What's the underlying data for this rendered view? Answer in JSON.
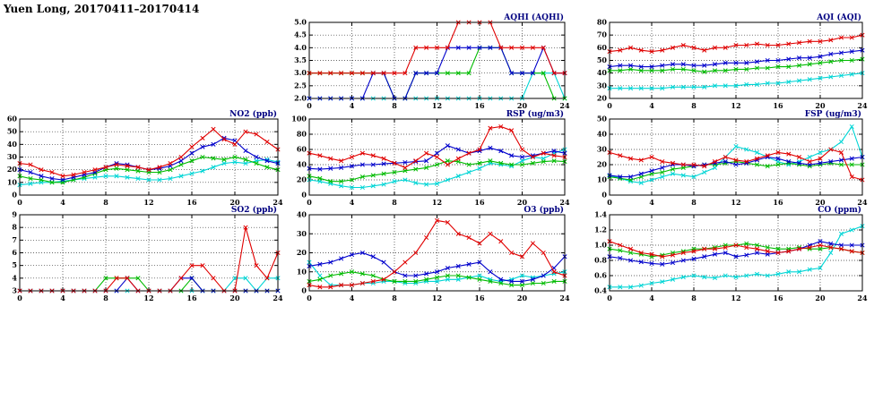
{
  "title": "Yuen Long, 20170411–20170414",
  "colors": {
    "red": "#e00000",
    "blue": "#0000cc",
    "green": "#00bb00",
    "cyan": "#00d5d5"
  },
  "chart_data": [
    {
      "key": "aqhi",
      "type": "line",
      "title": "AQHI (AQHI)",
      "xlim": [
        0,
        24
      ],
      "xticks": [
        "0",
        "4",
        "8",
        "12",
        "16",
        "20",
        "24"
      ],
      "ylim": [
        2,
        5
      ],
      "yticks": [
        "2.0",
        "2.5",
        "3.0",
        "3.5",
        "4.0",
        "4.5",
        "5.0"
      ],
      "series": [
        {
          "color": "cyan",
          "values": [
            2,
            2,
            2,
            2,
            2,
            2,
            2,
            2,
            2,
            2,
            2,
            2,
            2,
            2,
            2,
            2,
            2,
            2,
            2,
            2,
            2,
            3,
            3,
            3,
            2
          ]
        },
        {
          "color": "green",
          "values": [
            3,
            3,
            3,
            3,
            3,
            3,
            3,
            3,
            2,
            2,
            3,
            3,
            3,
            3,
            3,
            3,
            4,
            4,
            4,
            3,
            3,
            3,
            3,
            2,
            2
          ]
        },
        {
          "color": "blue",
          "values": [
            2,
            2,
            2,
            2,
            2,
            2,
            3,
            3,
            2,
            2,
            3,
            3,
            3,
            4,
            4,
            4,
            4,
            4,
            4,
            3,
            3,
            3,
            4,
            3,
            3
          ]
        },
        {
          "color": "red",
          "values": [
            3,
            3,
            3,
            3,
            3,
            3,
            3,
            3,
            3,
            3,
            4,
            4,
            4,
            4,
            5,
            5,
            5,
            5,
            4,
            4,
            4,
            4,
            4,
            3,
            3
          ]
        }
      ]
    },
    {
      "key": "aqi",
      "type": "line",
      "title": "AQI (AQI)",
      "xlim": [
        0,
        24
      ],
      "xticks": [
        "0",
        "4",
        "8",
        "12",
        "16",
        "20",
        "24"
      ],
      "ylim": [
        20,
        80
      ],
      "yticks": [
        "20",
        "30",
        "40",
        "50",
        "60",
        "70",
        "80"
      ],
      "series": [
        {
          "color": "cyan",
          "values": [
            28,
            28,
            28,
            28,
            28,
            28,
            29,
            29,
            29,
            29,
            30,
            30,
            30,
            31,
            31,
            32,
            32,
            33,
            34,
            35,
            36,
            37,
            38,
            39,
            40
          ]
        },
        {
          "color": "green",
          "values": [
            42,
            42,
            43,
            42,
            42,
            42,
            43,
            43,
            42,
            41,
            42,
            42,
            43,
            43,
            44,
            44,
            45,
            45,
            46,
            47,
            48,
            49,
            50,
            50,
            51
          ]
        },
        {
          "color": "blue",
          "values": [
            45,
            46,
            46,
            45,
            45,
            46,
            47,
            47,
            46,
            46,
            47,
            48,
            48,
            48,
            49,
            50,
            50,
            51,
            52,
            52,
            53,
            55,
            56,
            57,
            58
          ]
        },
        {
          "color": "red",
          "values": [
            57,
            58,
            60,
            58,
            57,
            58,
            60,
            62,
            60,
            58,
            60,
            60,
            62,
            62,
            63,
            62,
            62,
            63,
            64,
            65,
            65,
            66,
            68,
            68,
            70
          ]
        }
      ]
    },
    {
      "key": "no2",
      "type": "line",
      "title": "NO2 (ppb)",
      "xlim": [
        0,
        24
      ],
      "xticks": [
        "0",
        "4",
        "8",
        "12",
        "16",
        "20",
        "24"
      ],
      "ylim": [
        0,
        60
      ],
      "yticks": [
        "0",
        "10",
        "20",
        "30",
        "40",
        "50",
        "60"
      ],
      "series": [
        {
          "color": "cyan",
          "values": [
            8,
            9,
            10,
            10,
            11,
            12,
            13,
            14,
            15,
            15,
            14,
            13,
            12,
            12,
            13,
            15,
            17,
            19,
            22,
            25,
            26,
            25,
            27,
            28,
            26
          ]
        },
        {
          "color": "green",
          "values": [
            15,
            13,
            12,
            10,
            10,
            12,
            14,
            17,
            20,
            21,
            20,
            19,
            18,
            18,
            20,
            24,
            27,
            30,
            29,
            28,
            30,
            28,
            25,
            22,
            20
          ]
        },
        {
          "color": "blue",
          "values": [
            20,
            18,
            15,
            13,
            12,
            14,
            16,
            18,
            22,
            25,
            24,
            22,
            20,
            21,
            23,
            27,
            33,
            38,
            40,
            45,
            43,
            35,
            30,
            27,
            25
          ]
        },
        {
          "color": "red",
          "values": [
            25,
            24,
            20,
            18,
            15,
            16,
            18,
            20,
            22,
            24,
            23,
            22,
            20,
            22,
            25,
            30,
            38,
            45,
            52,
            44,
            40,
            50,
            48,
            42,
            36
          ]
        }
      ]
    },
    {
      "key": "rsp",
      "type": "line",
      "title": "RSP (ug/m3)",
      "xlim": [
        0,
        24
      ],
      "xticks": [
        "0",
        "4",
        "8",
        "12",
        "16",
        "20",
        "24"
      ],
      "ylim": [
        0,
        100
      ],
      "yticks": [
        "0",
        "20",
        "40",
        "60",
        "80",
        "100"
      ],
      "series": [
        {
          "color": "cyan",
          "values": [
            20,
            18,
            15,
            12,
            10,
            10,
            12,
            14,
            18,
            20,
            16,
            14,
            15,
            20,
            25,
            30,
            35,
            42,
            40,
            38,
            45,
            50,
            48,
            55,
            60
          ]
        },
        {
          "color": "green",
          "values": [
            25,
            22,
            18,
            18,
            20,
            24,
            26,
            28,
            30,
            32,
            34,
            36,
            40,
            45,
            44,
            40,
            42,
            45,
            42,
            40,
            40,
            42,
            44,
            45,
            44
          ]
        },
        {
          "color": "blue",
          "values": [
            35,
            34,
            35,
            36,
            38,
            40,
            40,
            41,
            42,
            43,
            44,
            45,
            55,
            65,
            60,
            55,
            58,
            62,
            58,
            52,
            50,
            52,
            55,
            58,
            55
          ]
        },
        {
          "color": "red",
          "values": [
            55,
            52,
            48,
            45,
            50,
            55,
            52,
            48,
            42,
            36,
            45,
            55,
            50,
            40,
            48,
            55,
            60,
            88,
            90,
            85,
            60,
            50,
            55,
            52,
            50
          ]
        }
      ]
    },
    {
      "key": "fsp",
      "type": "line",
      "title": "FSP (ug/m3)",
      "xlim": [
        0,
        24
      ],
      "xticks": [
        "0",
        "4",
        "8",
        "12",
        "16",
        "20",
        "24"
      ],
      "ylim": [
        0,
        50
      ],
      "yticks": [
        "0",
        "10",
        "20",
        "30",
        "40",
        "50"
      ],
      "series": [
        {
          "color": "cyan",
          "values": [
            13,
            11,
            9,
            8,
            10,
            12,
            14,
            13,
            12,
            15,
            18,
            25,
            32,
            30,
            28,
            25,
            22,
            20,
            22,
            25,
            28,
            30,
            35,
            45,
            25
          ]
        },
        {
          "color": "green",
          "values": [
            12,
            11,
            10,
            12,
            14,
            15,
            17,
            18,
            19,
            20,
            20,
            21,
            22,
            21,
            20,
            19,
            20,
            21,
            20,
            19,
            20,
            21,
            20,
            20,
            20
          ]
        },
        {
          "color": "blue",
          "values": [
            13,
            12,
            12,
            14,
            16,
            18,
            20,
            20,
            19,
            20,
            21,
            22,
            20,
            21,
            23,
            25,
            24,
            22,
            21,
            20,
            21,
            22,
            23,
            24,
            25
          ]
        },
        {
          "color": "red",
          "values": [
            28,
            26,
            24,
            23,
            25,
            22,
            21,
            20,
            20,
            19,
            22,
            25,
            23,
            22,
            24,
            26,
            28,
            27,
            25,
            22,
            24,
            30,
            28,
            12,
            10
          ]
        }
      ]
    },
    {
      "key": "so2",
      "type": "line",
      "title": "SO2 (ppb)",
      "xlim": [
        0,
        24
      ],
      "xticks": [
        "0",
        "4",
        "8",
        "12",
        "16",
        "20",
        "24"
      ],
      "ylim": [
        3,
        9
      ],
      "yticks": [
        "3",
        "4",
        "5",
        "6",
        "7",
        "8",
        "9"
      ],
      "series": [
        {
          "color": "cyan",
          "values": [
            3,
            3,
            3,
            3,
            3,
            3,
            3,
            3,
            3,
            3,
            3,
            3,
            3,
            3,
            3,
            3,
            3,
            3,
            3,
            3,
            4,
            4,
            3,
            4,
            4
          ]
        },
        {
          "color": "green",
          "values": [
            3,
            3,
            3,
            3,
            3,
            3,
            3,
            3,
            4,
            4,
            4,
            4,
            3,
            3,
            3,
            3,
            4,
            3,
            3,
            3,
            3,
            3,
            3,
            3,
            3
          ]
        },
        {
          "color": "blue",
          "values": [
            3,
            3,
            3,
            3,
            3,
            3,
            3,
            3,
            3,
            3,
            4,
            3,
            3,
            3,
            3,
            4,
            4,
            3,
            3,
            3,
            3,
            3,
            3,
            3,
            3
          ]
        },
        {
          "color": "red",
          "values": [
            3,
            3,
            3,
            3,
            3,
            3,
            3,
            3,
            3,
            4,
            4,
            3,
            3,
            3,
            3,
            4,
            5,
            5,
            4,
            3,
            3,
            8,
            5,
            4,
            6
          ]
        }
      ]
    },
    {
      "key": "o3",
      "type": "line",
      "title": "O3 (ppb)",
      "xlim": [
        0,
        24
      ],
      "xticks": [
        "0",
        "4",
        "8",
        "12",
        "16",
        "20",
        "24"
      ],
      "ylim": [
        0,
        40
      ],
      "yticks": [
        "0",
        "10",
        "20",
        "30",
        "40"
      ],
      "series": [
        {
          "color": "cyan",
          "values": [
            15,
            8,
            3,
            3,
            3,
            4,
            4,
            5,
            5,
            4,
            4,
            5,
            5,
            6,
            6,
            7,
            8,
            6,
            5,
            6,
            8,
            7,
            8,
            9,
            10
          ]
        },
        {
          "color": "green",
          "values": [
            5,
            6,
            8,
            9,
            10,
            9,
            8,
            6,
            5,
            5,
            5,
            6,
            7,
            8,
            8,
            7,
            6,
            5,
            4,
            3,
            3,
            4,
            4,
            5,
            5
          ]
        },
        {
          "color": "blue",
          "values": [
            13,
            14,
            15,
            17,
            19,
            20,
            18,
            15,
            10,
            8,
            8,
            9,
            10,
            12,
            13,
            14,
            15,
            10,
            6,
            5,
            5,
            6,
            8,
            12,
            18
          ]
        },
        {
          "color": "red",
          "values": [
            3,
            2,
            2,
            3,
            3,
            4,
            5,
            6,
            10,
            15,
            20,
            28,
            37,
            36,
            30,
            28,
            25,
            30,
            26,
            20,
            18,
            25,
            20,
            10,
            8
          ]
        }
      ]
    },
    {
      "key": "co",
      "type": "line",
      "title": "CO (ppm)",
      "xlim": [
        0,
        24
      ],
      "xticks": [
        "0",
        "4",
        "8",
        "12",
        "16",
        "20",
        "24"
      ],
      "ylim": [
        0.4,
        1.4
      ],
      "yticks": [
        "0.4",
        "0.6",
        "0.8",
        "1.0",
        "1.2",
        "1.4"
      ],
      "series": [
        {
          "color": "cyan",
          "values": [
            0.45,
            0.45,
            0.45,
            0.47,
            0.5,
            0.52,
            0.55,
            0.58,
            0.6,
            0.58,
            0.57,
            0.6,
            0.58,
            0.6,
            0.62,
            0.6,
            0.62,
            0.65,
            0.65,
            0.68,
            0.7,
            0.9,
            1.15,
            1.2,
            1.25
          ]
        },
        {
          "color": "green",
          "values": [
            0.95,
            0.93,
            0.9,
            0.88,
            0.85,
            0.87,
            0.9,
            0.92,
            0.95,
            0.95,
            0.97,
            1.0,
            1.0,
            1.02,
            1.0,
            0.97,
            0.95,
            0.95,
            0.97,
            0.95,
            0.95,
            0.97,
            0.95,
            0.92,
            0.9
          ]
        },
        {
          "color": "blue",
          "values": [
            0.85,
            0.83,
            0.8,
            0.78,
            0.76,
            0.75,
            0.77,
            0.8,
            0.82,
            0.85,
            0.88,
            0.9,
            0.85,
            0.87,
            0.9,
            0.88,
            0.9,
            0.92,
            0.95,
            1.0,
            1.05,
            1.02,
            1.0,
            1.0,
            1.0
          ]
        },
        {
          "color": "red",
          "values": [
            1.05,
            1.0,
            0.95,
            0.9,
            0.88,
            0.85,
            0.87,
            0.9,
            0.92,
            0.95,
            0.95,
            0.97,
            1.0,
            0.97,
            0.95,
            0.92,
            0.9,
            0.92,
            0.95,
            0.97,
            1.0,
            0.97,
            0.95,
            0.92,
            0.9
          ]
        }
      ]
    }
  ]
}
